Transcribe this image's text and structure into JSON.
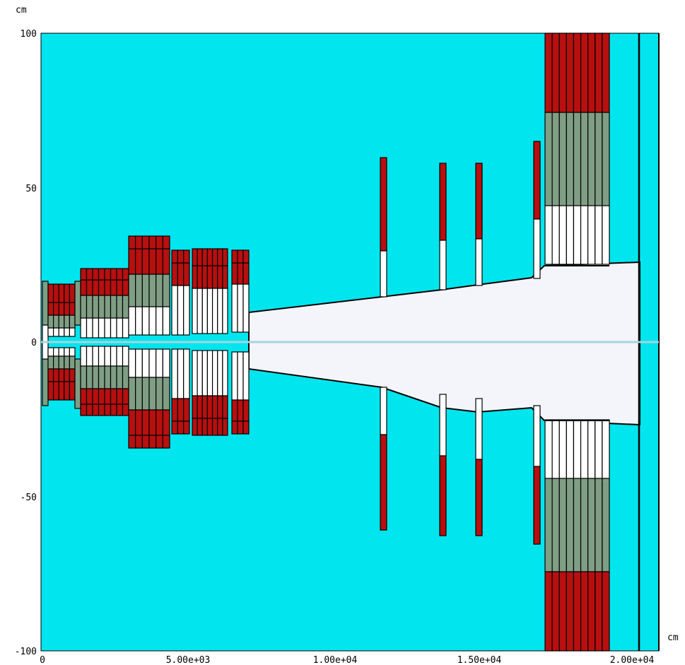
{
  "units": {
    "y": "cm",
    "x": "cm"
  },
  "axes": {
    "y_ticks": [
      {
        "value": 100,
        "label": "100"
      },
      {
        "value": 50,
        "label": "50"
      },
      {
        "value": 0,
        "label": "0"
      },
      {
        "value": -50,
        "label": "-50"
      },
      {
        "value": -100,
        "label": "-100"
      }
    ],
    "x_ticks": [
      {
        "value": 0,
        "label": "0"
      },
      {
        "value": 5000,
        "label": "5.00e+03"
      },
      {
        "value": 10000,
        "label": "1.00e+04"
      },
      {
        "value": 15000,
        "label": "1.50e+04"
      },
      {
        "value": 20000,
        "label": "2.00e+04"
      }
    ],
    "xlim": [
      0,
      21200
    ],
    "ylim": [
      -100,
      100
    ]
  },
  "colors": {
    "background": "#00e5ee",
    "aperture": "#f4f4fb",
    "red": "#b80f0f",
    "green": "#7f9e84",
    "white": "#ffffff",
    "line": "#000000",
    "axis_line": "#a6d5de"
  }
}
